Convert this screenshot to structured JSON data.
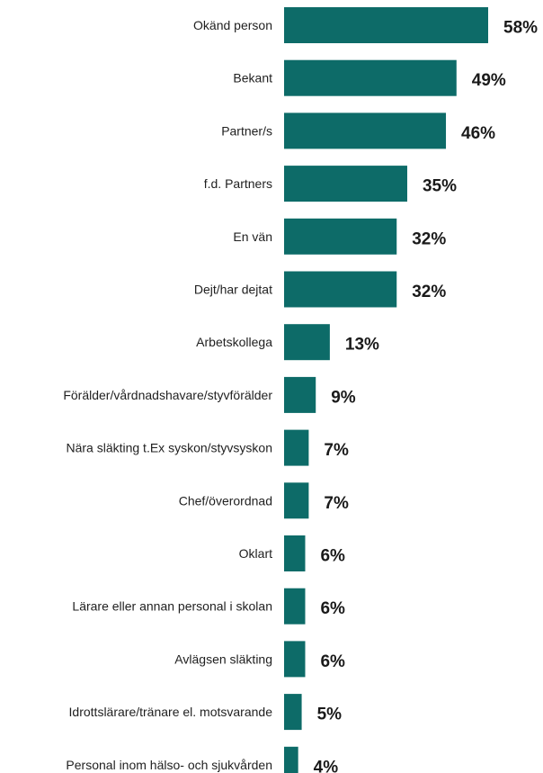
{
  "chart_data": {
    "type": "bar",
    "orientation": "horizontal",
    "categories": [
      "Okänd person",
      "Bekant",
      "Partner/s",
      "f.d. Partners",
      "En vän",
      "Dejt/har dejtat",
      "Arbetskollega",
      "Förälder/vårdnadshavare/styvförälder",
      "Nära släkting t.Ex syskon/styvsyskon",
      "Chef/överordnad",
      "Oklart",
      "Lärare eller annan personal i skolan",
      "Avlägsen släkting",
      "Idrottslärare/tränare el. motsvarande",
      "Personal inom hälso- och sjukvården"
    ],
    "values": [
      58,
      49,
      46,
      35,
      32,
      32,
      13,
      9,
      7,
      7,
      6,
      6,
      6,
      5,
      4
    ],
    "value_labels": [
      "58%",
      "49%",
      "46%",
      "35%",
      "32%",
      "32%",
      "13%",
      "9%",
      "7%",
      "7%",
      "6%",
      "6%",
      "6%",
      "5%",
      "4%"
    ],
    "title": "",
    "xlabel": "",
    "ylabel": "",
    "xlim": [
      0,
      58
    ],
    "grid": false,
    "legend": "none",
    "bar_color": "#0d6b68"
  }
}
